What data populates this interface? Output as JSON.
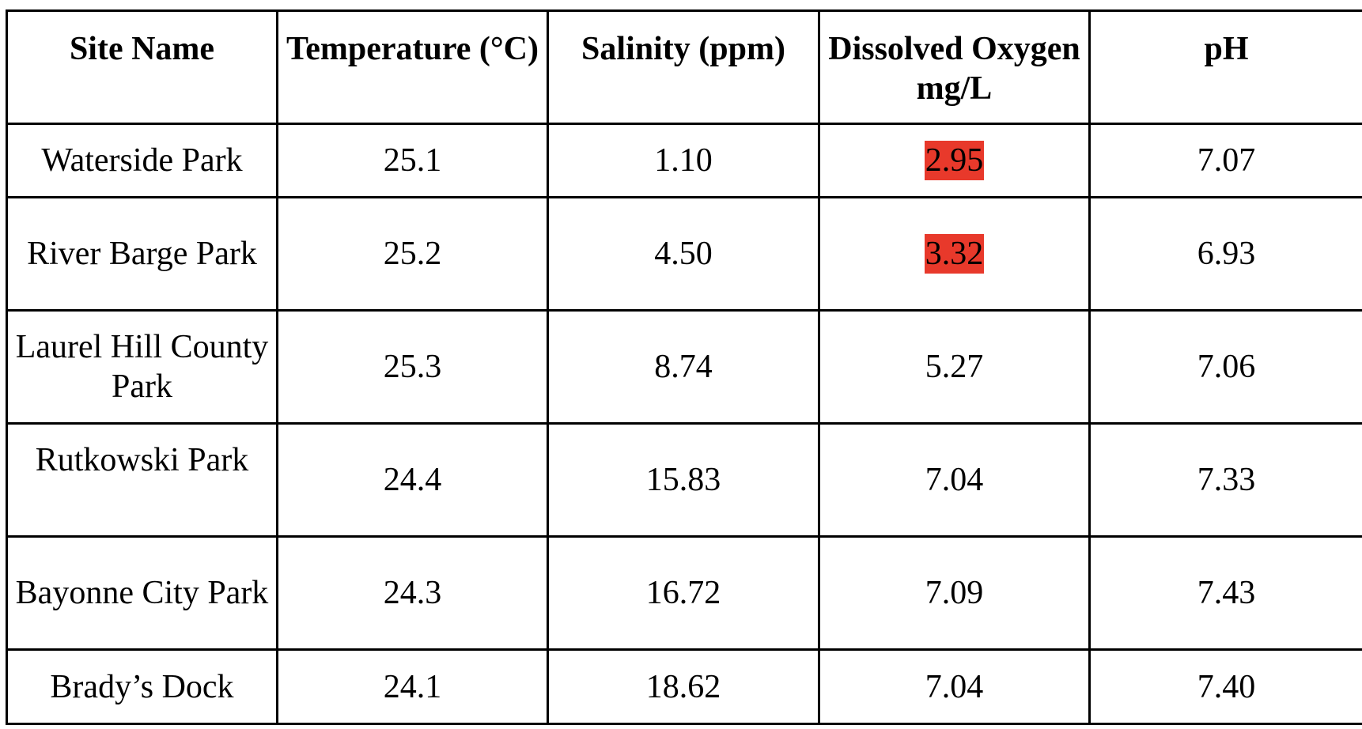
{
  "table": {
    "headers": [
      "Site Name",
      "Temperature (°C)",
      "Salinity (ppm)",
      "Dissolved Oxygen mg/L",
      "pH"
    ],
    "rows": [
      {
        "site": "Waterside Park",
        "temperature": "25.1",
        "salinity": "1.10",
        "dissolved_oxygen": "2.95",
        "ph": "7.07",
        "do_flagged": true
      },
      {
        "site": "River Barge Park",
        "temperature": "25.2",
        "salinity": "4.50",
        "dissolved_oxygen": "3.32",
        "ph": "6.93",
        "do_flagged": true
      },
      {
        "site": "Laurel Hill County Park",
        "temperature": "25.3",
        "salinity": "8.74",
        "dissolved_oxygen": "5.27",
        "ph": "7.06",
        "do_flagged": false
      },
      {
        "site": "Rutkowski Park",
        "temperature": "24.4",
        "salinity": "15.83",
        "dissolved_oxygen": "7.04",
        "ph": "7.33",
        "do_flagged": false
      },
      {
        "site": "Bayonne City Park",
        "temperature": "24.3",
        "salinity": "16.72",
        "dissolved_oxygen": "7.09",
        "ph": "7.43",
        "do_flagged": false
      },
      {
        "site": "Brady’s Dock",
        "temperature": "24.1",
        "salinity": "18.62",
        "dissolved_oxygen": "7.04",
        "ph": "7.40",
        "do_flagged": false
      }
    ]
  },
  "colors": {
    "highlight": "#e8392b",
    "border": "#000000",
    "text": "#000000",
    "background": "#ffffff"
  }
}
